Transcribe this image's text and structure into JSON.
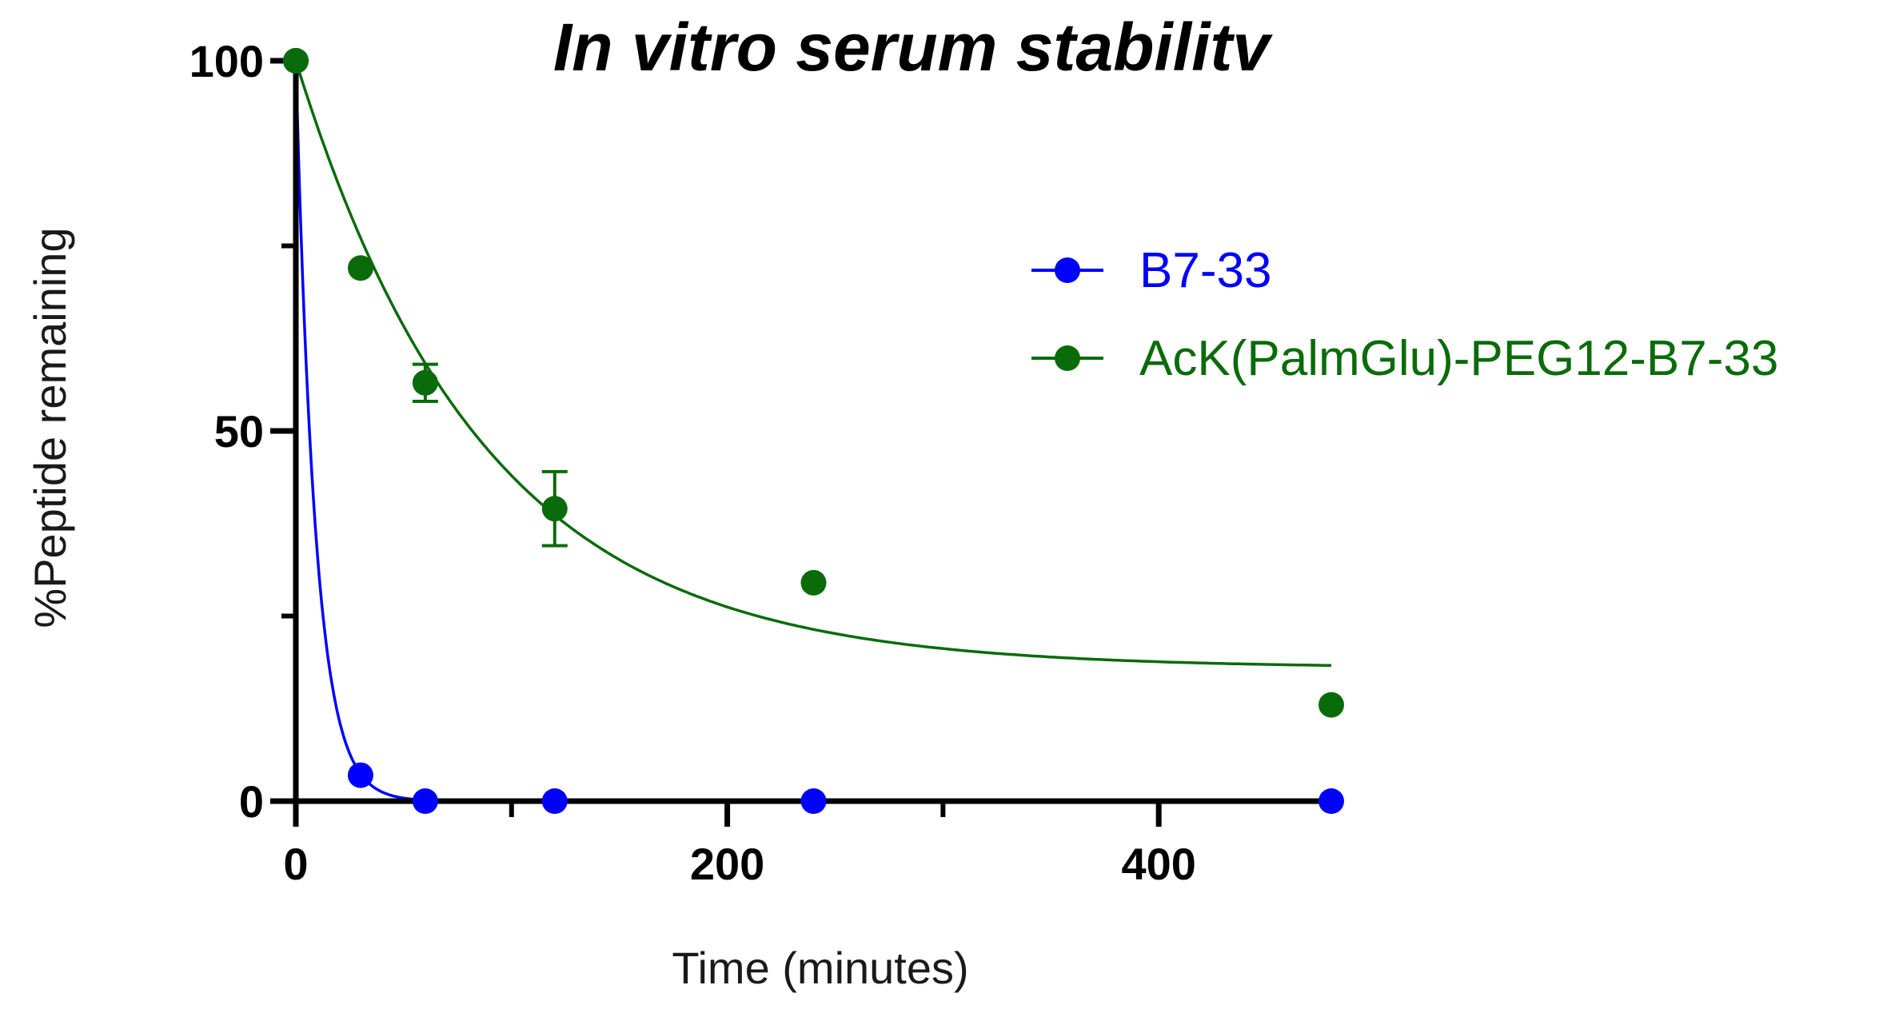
{
  "chart_data": {
    "type": "scatter",
    "title": "In vitro serum stabilitv",
    "xlabel": "Time (minutes)",
    "ylabel": "%Peptide remaining",
    "xlim": [
      0,
      480
    ],
    "ylim": [
      0,
      100
    ],
    "x_ticks": [
      {
        "value": 0,
        "label": "0"
      },
      {
        "value": 200,
        "label": "200"
      },
      {
        "value": 400,
        "label": "400"
      }
    ],
    "x_minor_ticks": [
      100,
      300
    ],
    "y_ticks": [
      {
        "value": 0,
        "label": "0"
      },
      {
        "value": 50,
        "label": "50"
      },
      {
        "value": 100,
        "label": "100"
      }
    ],
    "y_minor_ticks": [
      25,
      75
    ],
    "legend_position": "right",
    "grid": false,
    "series": [
      {
        "name": "B7-33",
        "color": "#0000ff",
        "x": [
          0,
          30,
          60,
          120,
          240,
          480
        ],
        "y": [
          100,
          3.5,
          0,
          0,
          0,
          0
        ],
        "error": [
          0,
          0,
          0,
          0,
          0,
          0
        ],
        "fit": {
          "model": "one-phase decay",
          "y0": 100,
          "plateau": 0,
          "k": 0.11
        }
      },
      {
        "name": "AcK(PalmGlu)-PEG12-B7-33",
        "color": "#0a6b0a",
        "x": [
          0,
          30,
          60,
          120,
          240,
          480
        ],
        "y": [
          100,
          72,
          56.5,
          39.5,
          29.5,
          13
        ],
        "error": [
          0,
          0,
          2.5,
          5,
          0,
          0
        ],
        "fit": {
          "model": "one-phase decay",
          "y0": 100,
          "plateau": 18,
          "k": 0.0115
        }
      }
    ]
  }
}
